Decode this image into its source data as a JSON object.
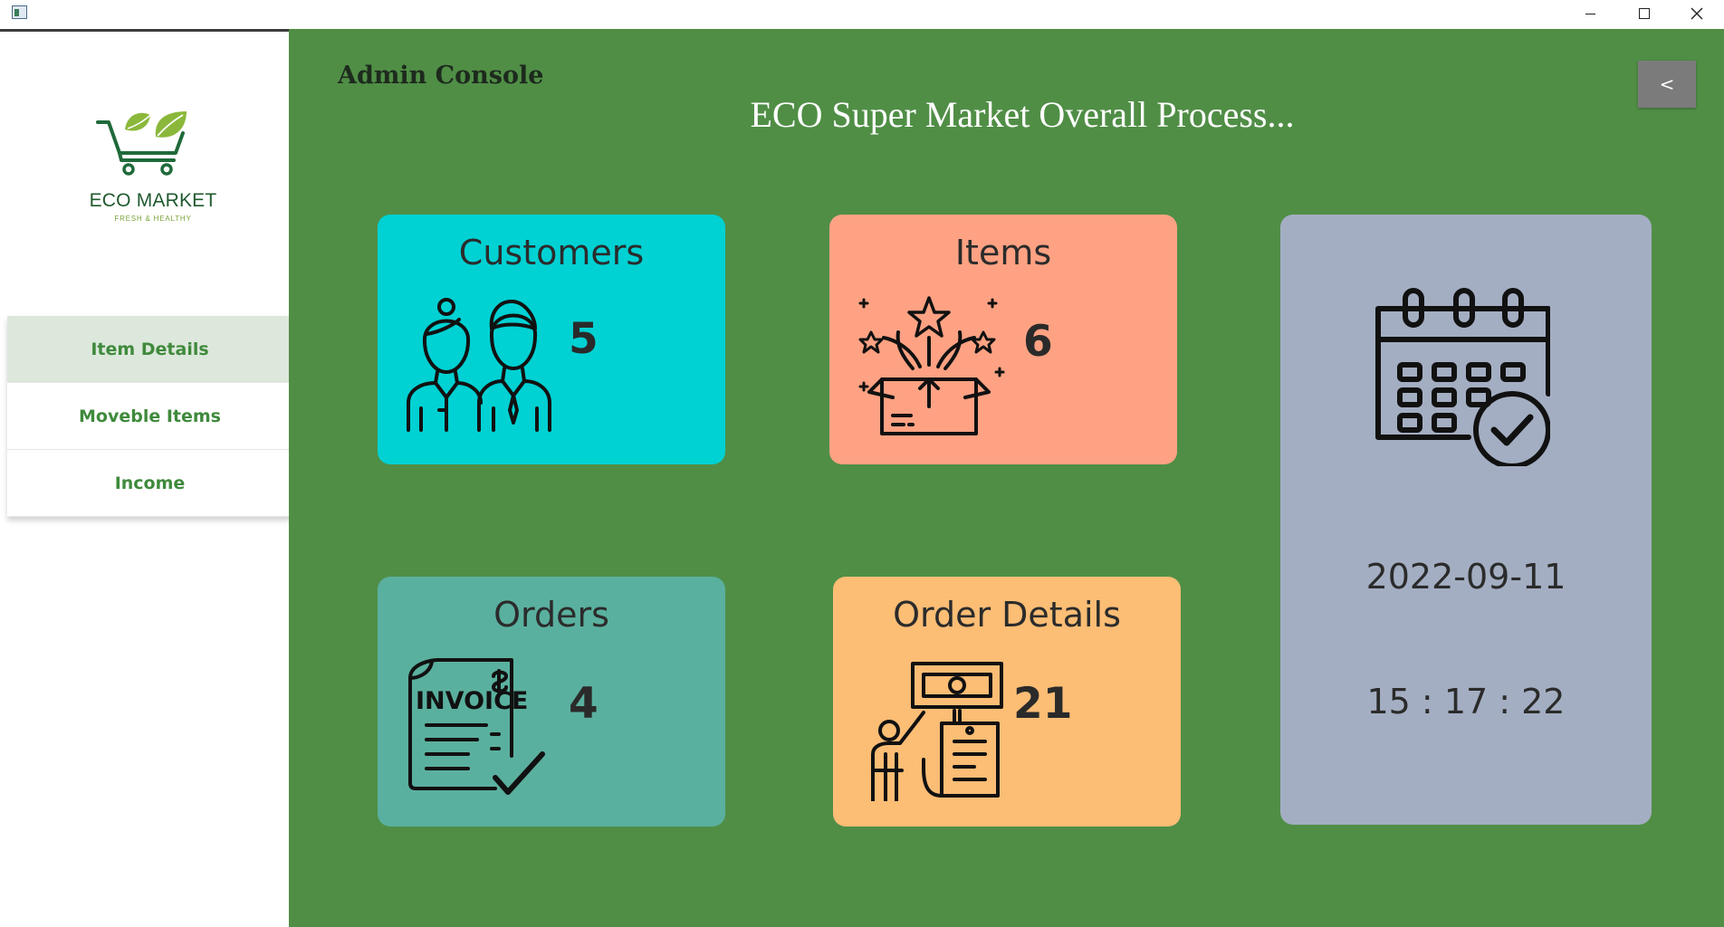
{
  "window": {
    "minimize_icon": "minimize-icon",
    "maximize_icon": "maximize-icon",
    "close_icon": "close-icon"
  },
  "sidebar": {
    "logo": {
      "title": "ECO MARKET",
      "subtitle": "FRESH & HEALTHY",
      "icon": "shopping-cart-leaf-icon"
    },
    "items": [
      {
        "label": "Item Details",
        "active": true
      },
      {
        "label": "Moveble Items",
        "active": false
      },
      {
        "label": "Income",
        "active": false
      }
    ]
  },
  "header": {
    "console_label": "Admin Console",
    "title": "ECO Super Market Overall Process...",
    "back_label": "<"
  },
  "cards": {
    "customers": {
      "title": "Customers",
      "count": "5",
      "icon": "customers-icon",
      "color": "#00d1d3"
    },
    "items": {
      "title": "Items",
      "count": "6",
      "icon": "gift-box-icon",
      "color": "#fea283"
    },
    "orders": {
      "title": "Orders",
      "count": "4",
      "icon": "invoice-icon",
      "color": "#5ab09e"
    },
    "order_details": {
      "title": "Order Details",
      "count": "21",
      "icon": "payment-receipt-icon",
      "color": "#fcbd75"
    }
  },
  "clock": {
    "date": "2022-09-11",
    "time": "15 : 17 : 22",
    "icon": "calendar-check-icon",
    "color": "#a4aec2"
  },
  "colors": {
    "main_background": "#508e46",
    "menu_text": "#3f8a3c",
    "menu_active_bg": "#dde8dc",
    "brand_dark": "#1f5a2e"
  }
}
